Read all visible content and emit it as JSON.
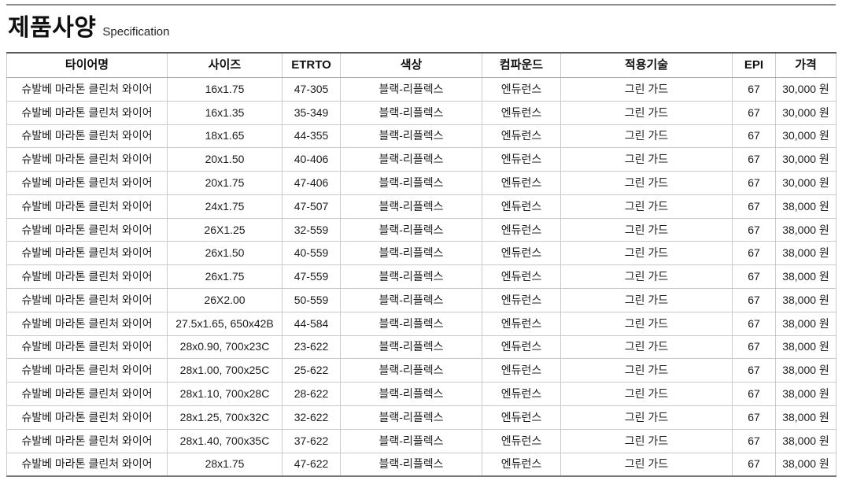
{
  "page": {
    "title": "제품사양",
    "subtitle": "Specification"
  },
  "table": {
    "columns": [
      {
        "key": "name",
        "label": "타이어명"
      },
      {
        "key": "size",
        "label": "사이즈"
      },
      {
        "key": "etrto",
        "label": "ETRTO"
      },
      {
        "key": "color",
        "label": "색상"
      },
      {
        "key": "compound",
        "label": "컴파운드"
      },
      {
        "key": "tech",
        "label": "적용기술"
      },
      {
        "key": "epi",
        "label": "EPI"
      },
      {
        "key": "price",
        "label": "가격"
      }
    ],
    "rows": [
      [
        "슈발베 마라톤 클린처 와이어",
        "16x1.75",
        "47-305",
        "블랙-리플렉스",
        "엔듀런스",
        "그린 가드",
        "67",
        "30,000 원"
      ],
      [
        "슈발베 마라톤 클린처 와이어",
        "16x1.35",
        "35-349",
        "블랙-리플렉스",
        "엔듀런스",
        "그린 가드",
        "67",
        "30,000 원"
      ],
      [
        "슈발베 마라톤 클린처 와이어",
        "18x1.65",
        "44-355",
        "블랙-리플렉스",
        "엔듀런스",
        "그린 가드",
        "67",
        "30,000 원"
      ],
      [
        "슈발베 마라톤 클린처 와이어",
        "20x1.50",
        "40-406",
        "블랙-리플렉스",
        "엔듀런스",
        "그린 가드",
        "67",
        "30,000 원"
      ],
      [
        "슈발베 마라톤 클린처 와이어",
        "20x1.75",
        "47-406",
        "블랙-리플렉스",
        "엔듀런스",
        "그린 가드",
        "67",
        "30,000 원"
      ],
      [
        "슈발베 마라톤 클린처 와이어",
        "24x1.75",
        "47-507",
        "블랙-리플렉스",
        "엔듀런스",
        "그린 가드",
        "67",
        "38,000 원"
      ],
      [
        "슈발베 마라톤 클린처 와이어",
        "26X1.25",
        "32-559",
        "블랙-리플렉스",
        "엔듀런스",
        "그린 가드",
        "67",
        "38,000 원"
      ],
      [
        "슈발베 마라톤 클린처 와이어",
        "26x1.50",
        "40-559",
        "블랙-리플렉스",
        "엔듀런스",
        "그린 가드",
        "67",
        "38,000 원"
      ],
      [
        "슈발베 마라톤 클린처 와이어",
        "26x1.75",
        "47-559",
        "블랙-리플렉스",
        "엔듀런스",
        "그린 가드",
        "67",
        "38,000 원"
      ],
      [
        "슈발베 마라톤 클린처 와이어",
        "26X2.00",
        "50-559",
        "블랙-리플렉스",
        "엔듀런스",
        "그린 가드",
        "67",
        "38,000 원"
      ],
      [
        "슈발베 마라톤 클린처 와이어",
        "27.5x1.65, 650x42B",
        "44-584",
        "블랙-리플렉스",
        "엔듀런스",
        "그린 가드",
        "67",
        "38,000 원"
      ],
      [
        "슈발베 마라톤 클린처 와이어",
        "28x0.90, 700x23C",
        "23-622",
        "블랙-리플렉스",
        "엔듀런스",
        "그린 가드",
        "67",
        "38,000 원"
      ],
      [
        "슈발베 마라톤 클린처 와이어",
        "28x1.00, 700x25C",
        "25-622",
        "블랙-리플렉스",
        "엔듀런스",
        "그린 가드",
        "67",
        "38,000 원"
      ],
      [
        "슈발베 마라톤 클린처 와이어",
        "28x1.10, 700x28C",
        "28-622",
        "블랙-리플렉스",
        "엔듀런스",
        "그린 가드",
        "67",
        "38,000 원"
      ],
      [
        "슈발베 마라톤 클린처 와이어",
        "28x1.25, 700x32C",
        "32-622",
        "블랙-리플렉스",
        "엔듀런스",
        "그린 가드",
        "67",
        "38,000 원"
      ],
      [
        "슈발베 마라톤 클린처 와이어",
        "28x1.40, 700x35C",
        "37-622",
        "블랙-리플렉스",
        "엔듀런스",
        "그린 가드",
        "67",
        "38,000 원"
      ],
      [
        "슈발베 마라톤 클린처 와이어",
        "28x1.75",
        "47-622",
        "블랙-리플렉스",
        "엔듀런스",
        "그린 가드",
        "67",
        "38,000 원"
      ]
    ]
  },
  "colors": {
    "rule_dark": "#5a5a5a",
    "rule_light": "#cccccc",
    "text": "#1c1c1c"
  }
}
